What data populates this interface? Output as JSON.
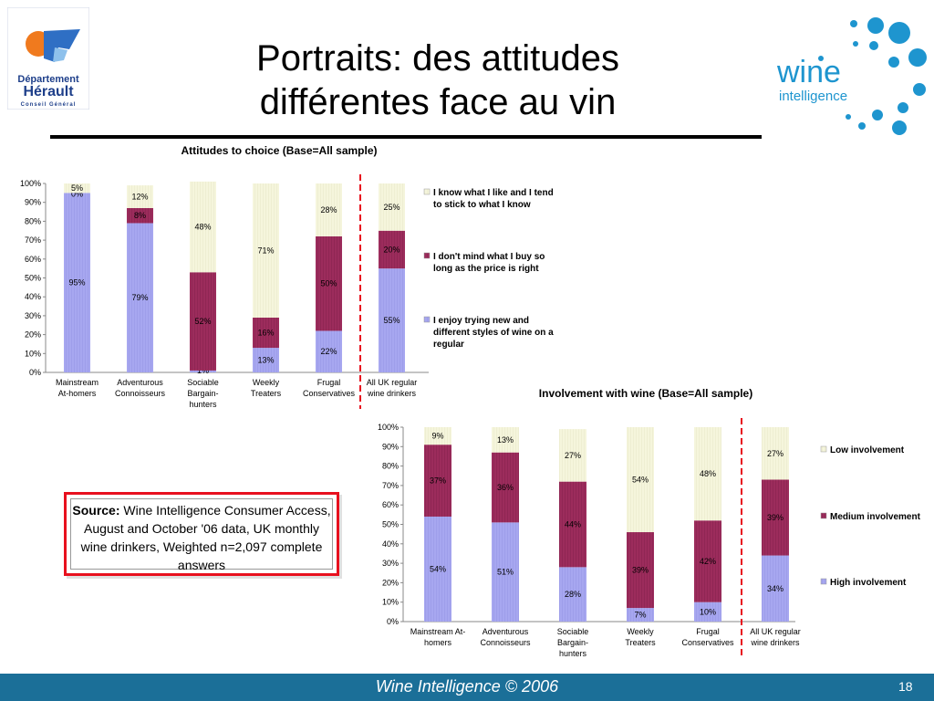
{
  "slide": {
    "title_line1": "Portraits: des attitudes",
    "title_line2": "différentes face au vin",
    "footer": "Wine Intelligence © 2006",
    "page_number": "18"
  },
  "logos": {
    "dept_line1": "Département",
    "dept_line2": "Hérault",
    "dept_line3": "Conseil Général",
    "wine_word": "wine",
    "wine_sub": "intelligence"
  },
  "source": {
    "label": "Source:",
    "text": "Wine Intelligence Consumer Access, August and October '06 data, UK monthly wine drinkers, Weighted n=2,097 complete answers"
  },
  "colors": {
    "series_bottom": "#a7a7f0",
    "series_middle": "#9c2c5c",
    "series_top": "#f5f5dc",
    "accent_red": "#e8101e",
    "footer_blue": "#1b6f98"
  },
  "chart_data": [
    {
      "type": "bar",
      "stacked": true,
      "title": "Attitudes to choice (Base=All sample)",
      "ylim": [
        0,
        100
      ],
      "yticks": [
        "0%",
        "10%",
        "20%",
        "30%",
        "40%",
        "50%",
        "60%",
        "70%",
        "80%",
        "90%",
        "100%"
      ],
      "categories": [
        [
          "Mainstream",
          "At-homers"
        ],
        [
          "Adventurous",
          "Connoisseurs"
        ],
        [
          "Sociable",
          "Bargain-",
          "hunters"
        ],
        [
          "Weekly",
          "Treaters"
        ],
        [
          "Frugal",
          "Conservatives"
        ],
        [
          "All UK regular",
          "wine drinkers"
        ]
      ],
      "divider_after_index": 4,
      "series": [
        {
          "name": "I enjoy trying new and different styles of wine on a regular",
          "values": [
            95,
            79,
            1,
            13,
            22,
            55
          ],
          "labels": [
            "95%",
            "79%",
            "1%",
            "13%",
            "22%",
            "55%"
          ]
        },
        {
          "name": "I don't mind what I buy so long as the price is right",
          "values": [
            0,
            8,
            52,
            16,
            50,
            20
          ],
          "labels": [
            "0%",
            "8%",
            "52%",
            "16%",
            "50%",
            "20%"
          ]
        },
        {
          "name": "I know what I like and I tend to stick to what I know",
          "values": [
            5,
            12,
            48,
            71,
            28,
            25
          ],
          "labels": [
            "5%",
            "12%",
            "48%",
            "71%",
            "28%",
            "25%"
          ]
        }
      ],
      "legend_position": "right"
    },
    {
      "type": "bar",
      "stacked": true,
      "title": "Involvement with wine (Base=All sample)",
      "ylim": [
        0,
        100
      ],
      "yticks": [
        "0%",
        "10%",
        "20%",
        "30%",
        "40%",
        "50%",
        "60%",
        "70%",
        "80%",
        "90%",
        "100%"
      ],
      "categories": [
        [
          "Mainstream At-",
          "homers"
        ],
        [
          "Adventurous",
          "Connoisseurs"
        ],
        [
          "Sociable",
          "Bargain-",
          "hunters"
        ],
        [
          "Weekly",
          "Treaters"
        ],
        [
          "Frugal",
          "Conservatives"
        ],
        [
          "All UK regular",
          "wine drinkers"
        ]
      ],
      "divider_after_index": 4,
      "series": [
        {
          "name": "High involvement",
          "values": [
            54,
            51,
            28,
            7,
            10,
            34
          ],
          "labels": [
            "54%",
            "51%",
            "28%",
            "7%",
            "10%",
            "34%"
          ]
        },
        {
          "name": "Medium involvement",
          "values": [
            37,
            36,
            44,
            39,
            42,
            39
          ],
          "labels": [
            "37%",
            "36%",
            "44%",
            "39%",
            "42%",
            "39%"
          ]
        },
        {
          "name": "Low involvement",
          "values": [
            9,
            13,
            27,
            54,
            48,
            27
          ],
          "labels": [
            "9%",
            "13%",
            "27%",
            "54%",
            "48%",
            "27%"
          ]
        }
      ],
      "legend_position": "right"
    }
  ]
}
